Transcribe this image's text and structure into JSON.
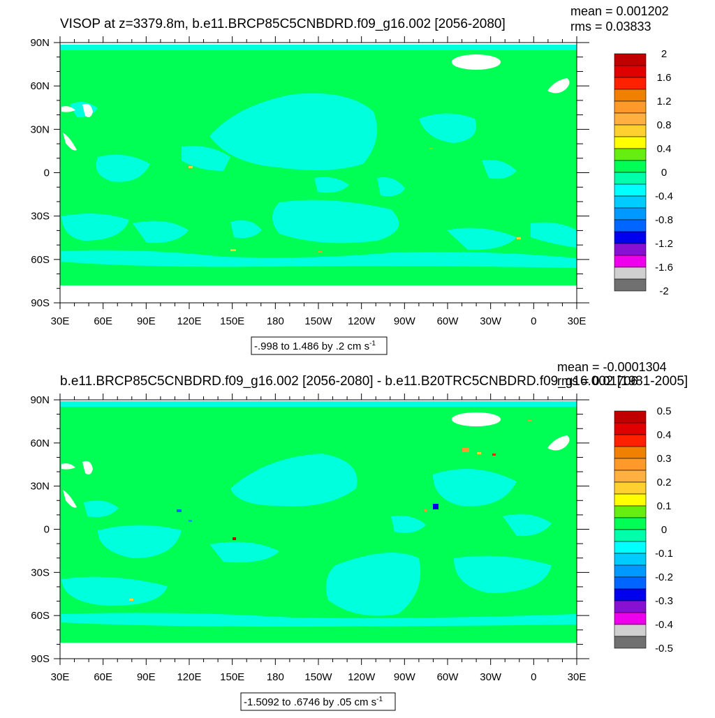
{
  "panels": [
    {
      "title": "VISOP at z=3379.8m, b.e11.BRCP85C5CNBDRD.f09_g16.002 [2056-2080]",
      "mean_text": "mean = 0.001202",
      "rms_text": "rms = 0.03833",
      "range_text": "-.998 to 1.486 by .2 cm s",
      "range_sup": "-1",
      "colorbar_labels": [
        "2",
        "1.6",
        "1.2",
        "0.8",
        "0.4",
        "0",
        "-0.4",
        "-0.8",
        "-1.2",
        "-1.6",
        "-2"
      ]
    },
    {
      "title": "b.e11.BRCP85C5CNBDRD.f09_g16.002 [2056-2080] - b.e11.B20TRC5CNBDRD.f09_g16.002 [1981-2005]",
      "mean_text": "mean = -0.0001304",
      "rms_text": "rms = 0.01706",
      "range_text": "-1.5092 to .6746 by .05 cm s",
      "range_sup": "-1",
      "colorbar_labels": [
        "0.5",
        "0.4",
        "0.3",
        "0.2",
        "0.1",
        "0",
        "-0.1",
        "-0.2",
        "-0.3",
        "-0.4",
        "-0.5"
      ]
    }
  ],
  "colors": {
    "land_fill": "#00ff55",
    "ocean_anom": "#00ffdd",
    "no_data": "#ffffff",
    "colorbar": [
      "#c00000",
      "#e00000",
      "#ff2000",
      "#f08000",
      "#ff9a2a",
      "#ffb040",
      "#ffd030",
      "#ffff00",
      "#66ee10",
      "#00ff55",
      "#00ffaa",
      "#00ffff",
      "#00ccff",
      "#0099ff",
      "#0066ff",
      "#0000ee",
      "#8810d0",
      "#ee00ee",
      "#d0d0d0",
      "#707070"
    ]
  },
  "chart_data": [
    {
      "type": "heatmap",
      "title": "VISOP at z=3379.8m, b.e11.BRCP85C5CNBDRD.f09_g16.002 [2056-2080]",
      "x_tick_labels": [
        "30E",
        "60E",
        "90E",
        "120E",
        "150E",
        "180",
        "150W",
        "120W",
        "90W",
        "60W",
        "30W",
        "0",
        "30E"
      ],
      "y_tick_labels": [
        "90N",
        "60N",
        "30N",
        "0",
        "30S",
        "60S",
        "90S"
      ],
      "xlim": [
        30,
        390
      ],
      "ylim": [
        -90,
        90
      ],
      "colorbar_levels": [
        -2,
        -1.8,
        -1.6,
        -1.4,
        -1.2,
        -1.0,
        -0.8,
        -0.6,
        -0.4,
        -0.2,
        0,
        0.2,
        0.4,
        0.6,
        0.8,
        1.0,
        1.2,
        1.4,
        1.6,
        1.8,
        2
      ],
      "data_min": -0.998,
      "data_max": 1.486,
      "contour_interval": 0.2,
      "units": "cm s-1",
      "mean": 0.001202,
      "rms": 0.03833
    },
    {
      "type": "heatmap",
      "title": "b.e11.BRCP85C5CNBDRD.f09_g16.002 [2056-2080] - b.e11.B20TRC5CNBDRD.f09_g16.002 [1981-2005]",
      "x_tick_labels": [
        "30E",
        "60E",
        "90E",
        "120E",
        "150E",
        "180",
        "150W",
        "120W",
        "90W",
        "60W",
        "30W",
        "0",
        "30E"
      ],
      "y_tick_labels": [
        "90N",
        "60N",
        "30N",
        "0",
        "30S",
        "60S",
        "90S"
      ],
      "xlim": [
        30,
        390
      ],
      "ylim": [
        -90,
        90
      ],
      "colorbar_levels": [
        -0.5,
        -0.45,
        -0.4,
        -0.35,
        -0.3,
        -0.25,
        -0.2,
        -0.15,
        -0.1,
        -0.05,
        0,
        0.05,
        0.1,
        0.15,
        0.2,
        0.25,
        0.3,
        0.35,
        0.4,
        0.45,
        0.5
      ],
      "data_min": -1.5092,
      "data_max": 0.6746,
      "contour_interval": 0.05,
      "units": "cm s-1",
      "mean": -0.0001304,
      "rms": 0.01706
    }
  ]
}
